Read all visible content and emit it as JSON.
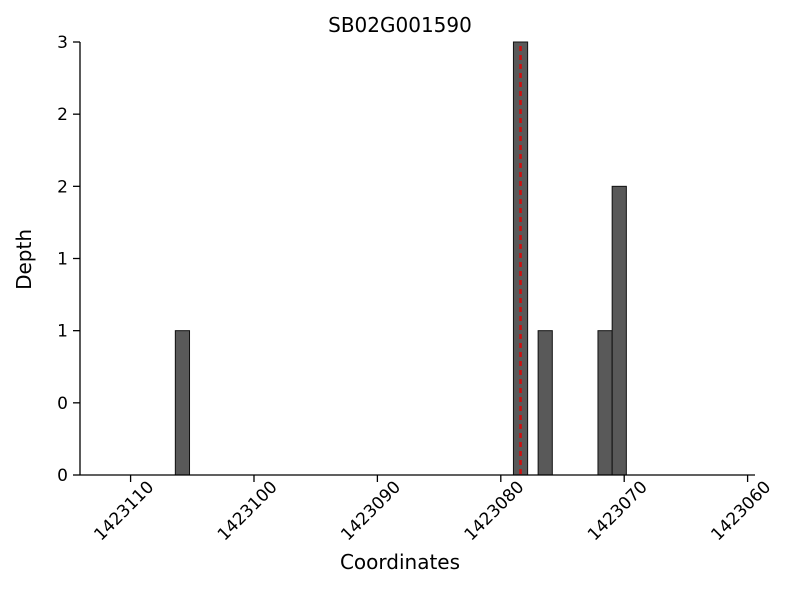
{
  "figure": {
    "title": "SB02G001590",
    "xlabel": "Coordinates",
    "ylabel": "Depth"
  },
  "chart_data": {
    "type": "bar",
    "title": "SB02G001590",
    "xlabel": "Coordinates",
    "ylabel": "Depth",
    "x_axis": {
      "reversed": true,
      "left_value": 1423114.1,
      "right_value": 1423059.4,
      "ticks": [
        1423110,
        1423100,
        1423090,
        1423080,
        1423070,
        1423060
      ],
      "tick_labels": [
        "1423110",
        "1423100",
        "1423090",
        "1423080",
        "1423070",
        "1423060"
      ]
    },
    "y_axis": {
      "min": 0,
      "max": 3,
      "tick_values": [
        0,
        0.5,
        1,
        1.5,
        2,
        2.5,
        3
      ],
      "tick_labels": [
        "0",
        "0",
        "1",
        "1",
        "2",
        "2",
        "3"
      ]
    },
    "bar_width_units": 1.15,
    "bars": [
      {
        "coordinate": 1423105.8,
        "depth": 1
      },
      {
        "coordinate": 1423078.4,
        "depth": 3
      },
      {
        "coordinate": 1423076.4,
        "depth": 1
      },
      {
        "coordinate": 1423071.55,
        "depth": 1
      },
      {
        "coordinate": 1423070.4,
        "depth": 2
      }
    ],
    "marker_line": {
      "coordinate": 1423078.4,
      "depth": 3,
      "style": "dashed",
      "color": "#cc1111"
    },
    "colors": {
      "bar_fill": "#595959",
      "bar_stroke": "#111111",
      "axis": "#000000",
      "text": "#000000"
    },
    "legend": "none",
    "grid": false
  }
}
